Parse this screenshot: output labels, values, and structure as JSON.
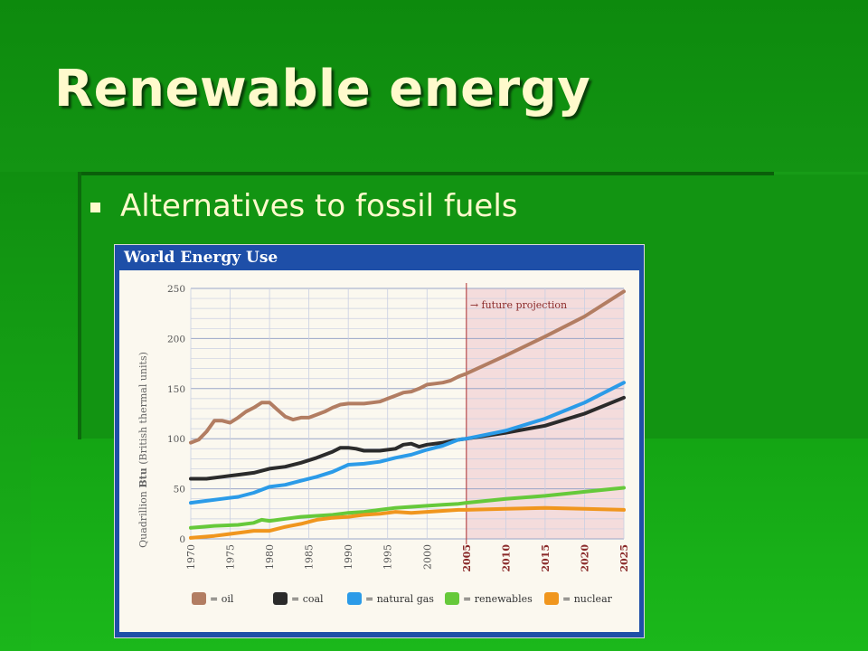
{
  "slide": {
    "title": "Renewable energy",
    "bullet": "Alternatives to fossil fuels"
  },
  "colors": {
    "title_text": "#fffacc",
    "chart_frame": "#1e4fa8",
    "projection_shade": "#f4dcdc",
    "projection_line": "#b03030"
  },
  "chart_data": {
    "type": "line",
    "title": "World Energy Use",
    "ylabel_prefix": "Quadrillion ",
    "ylabel_bold": "Btu",
    "ylabel_suffix": " (British thermal units)",
    "xlabel": "",
    "xlim": [
      1970,
      2025
    ],
    "ylim": [
      0,
      250
    ],
    "yticks": [
      0,
      50,
      100,
      150,
      200,
      250
    ],
    "xticks_history": [
      1970,
      1975,
      1980,
      1985,
      1990,
      1995,
      2000
    ],
    "xticks_projection": [
      2005,
      2010,
      2015,
      2020,
      2025
    ],
    "projection_start": 2005,
    "annotation": "→ future projection",
    "grid": true,
    "legend_position": "bottom",
    "series": [
      {
        "name": "= oil",
        "color": "#b27d62",
        "points": [
          [
            1970,
            96
          ],
          [
            1971,
            99
          ],
          [
            1972,
            107
          ],
          [
            1973,
            118
          ],
          [
            1974,
            118
          ],
          [
            1975,
            116
          ],
          [
            1976,
            121
          ],
          [
            1977,
            127
          ],
          [
            1978,
            131
          ],
          [
            1979,
            136
          ],
          [
            1980,
            136
          ],
          [
            1981,
            129
          ],
          [
            1982,
            122
          ],
          [
            1983,
            119
          ],
          [
            1984,
            121
          ],
          [
            1985,
            121
          ],
          [
            1986,
            124
          ],
          [
            1987,
            127
          ],
          [
            1988,
            131
          ],
          [
            1989,
            134
          ],
          [
            1990,
            135
          ],
          [
            1991,
            135
          ],
          [
            1992,
            135
          ],
          [
            1993,
            136
          ],
          [
            1994,
            137
          ],
          [
            1995,
            140
          ],
          [
            1996,
            143
          ],
          [
            1997,
            146
          ],
          [
            1998,
            147
          ],
          [
            1999,
            150
          ],
          [
            2000,
            154
          ],
          [
            2001,
            155
          ],
          [
            2002,
            156
          ],
          [
            2003,
            158
          ],
          [
            2004,
            162
          ],
          [
            2005,
            165
          ],
          [
            2010,
            183
          ],
          [
            2015,
            202
          ],
          [
            2020,
            222
          ],
          [
            2025,
            247
          ]
        ]
      },
      {
        "name": "= coal",
        "color": "#2b2b2b",
        "points": [
          [
            1970,
            60
          ],
          [
            1972,
            60
          ],
          [
            1974,
            62
          ],
          [
            1976,
            64
          ],
          [
            1978,
            66
          ],
          [
            1980,
            70
          ],
          [
            1982,
            72
          ],
          [
            1984,
            76
          ],
          [
            1986,
            81
          ],
          [
            1988,
            87
          ],
          [
            1989,
            91
          ],
          [
            1990,
            91
          ],
          [
            1991,
            90
          ],
          [
            1992,
            88
          ],
          [
            1994,
            88
          ],
          [
            1996,
            90
          ],
          [
            1997,
            94
          ],
          [
            1998,
            95
          ],
          [
            1999,
            92
          ],
          [
            2000,
            94
          ],
          [
            2002,
            96
          ],
          [
            2004,
            99
          ],
          [
            2005,
            100
          ],
          [
            2010,
            106
          ],
          [
            2015,
            113
          ],
          [
            2020,
            125
          ],
          [
            2025,
            141
          ]
        ]
      },
      {
        "name": "= natural gas",
        "color": "#2b9be8",
        "points": [
          [
            1970,
            36
          ],
          [
            1972,
            38
          ],
          [
            1974,
            40
          ],
          [
            1976,
            42
          ],
          [
            1978,
            46
          ],
          [
            1980,
            52
          ],
          [
            1982,
            54
          ],
          [
            1984,
            58
          ],
          [
            1986,
            62
          ],
          [
            1988,
            67
          ],
          [
            1990,
            74
          ],
          [
            1992,
            75
          ],
          [
            1994,
            77
          ],
          [
            1996,
            81
          ],
          [
            1998,
            84
          ],
          [
            2000,
            89
          ],
          [
            2002,
            93
          ],
          [
            2004,
            99
          ],
          [
            2005,
            100
          ],
          [
            2010,
            108
          ],
          [
            2015,
            120
          ],
          [
            2020,
            136
          ],
          [
            2025,
            156
          ]
        ]
      },
      {
        "name": "= renewables",
        "color": "#66c93a",
        "points": [
          [
            1970,
            11
          ],
          [
            1973,
            13
          ],
          [
            1976,
            14
          ],
          [
            1978,
            16
          ],
          [
            1979,
            19
          ],
          [
            1980,
            18
          ],
          [
            1982,
            20
          ],
          [
            1984,
            22
          ],
          [
            1986,
            23
          ],
          [
            1988,
            24
          ],
          [
            1990,
            26
          ],
          [
            1992,
            27
          ],
          [
            1994,
            29
          ],
          [
            1996,
            31
          ],
          [
            1998,
            32
          ],
          [
            2000,
            33
          ],
          [
            2002,
            34
          ],
          [
            2004,
            35
          ],
          [
            2005,
            36
          ],
          [
            2010,
            40
          ],
          [
            2015,
            43
          ],
          [
            2020,
            47
          ],
          [
            2025,
            51
          ]
        ]
      },
      {
        "name": "= nuclear",
        "color": "#f0961e",
        "points": [
          [
            1970,
            1
          ],
          [
            1973,
            3
          ],
          [
            1976,
            6
          ],
          [
            1978,
            8
          ],
          [
            1980,
            8
          ],
          [
            1982,
            12
          ],
          [
            1984,
            15
          ],
          [
            1986,
            19
          ],
          [
            1988,
            21
          ],
          [
            1990,
            22
          ],
          [
            1992,
            24
          ],
          [
            1994,
            25
          ],
          [
            1996,
            27
          ],
          [
            1998,
            26
          ],
          [
            2000,
            27
          ],
          [
            2002,
            28
          ],
          [
            2004,
            29
          ],
          [
            2005,
            29
          ],
          [
            2010,
            30
          ],
          [
            2015,
            31
          ],
          [
            2020,
            30
          ],
          [
            2025,
            29
          ]
        ]
      }
    ]
  }
}
